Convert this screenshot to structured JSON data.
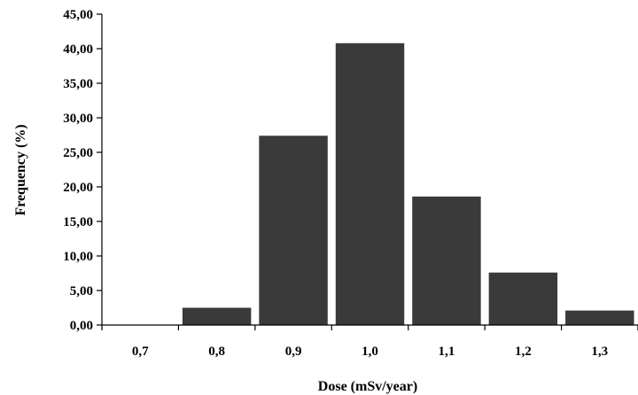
{
  "chart_data": {
    "type": "bar",
    "title": "",
    "xlabel": "Dose (mSv/year)",
    "ylabel": "Frequency (%)",
    "categories": [
      "0,7",
      "0,8",
      "0,9",
      "1,0",
      "1,1",
      "1,2",
      "1,3"
    ],
    "values": [
      0.0,
      2.5,
      27.4,
      40.8,
      18.6,
      7.6,
      2.1
    ],
    "ylim": [
      0,
      45
    ],
    "yticks": [
      "0,00",
      "5,00",
      "10,00",
      "15,00",
      "20,00",
      "25,00",
      "30,00",
      "35,00",
      "40,00",
      "45,00"
    ],
    "ytick_step": 5,
    "grid": false,
    "legend": "none",
    "bar_color": "#3a3a3a",
    "axis_color": "#000000"
  }
}
